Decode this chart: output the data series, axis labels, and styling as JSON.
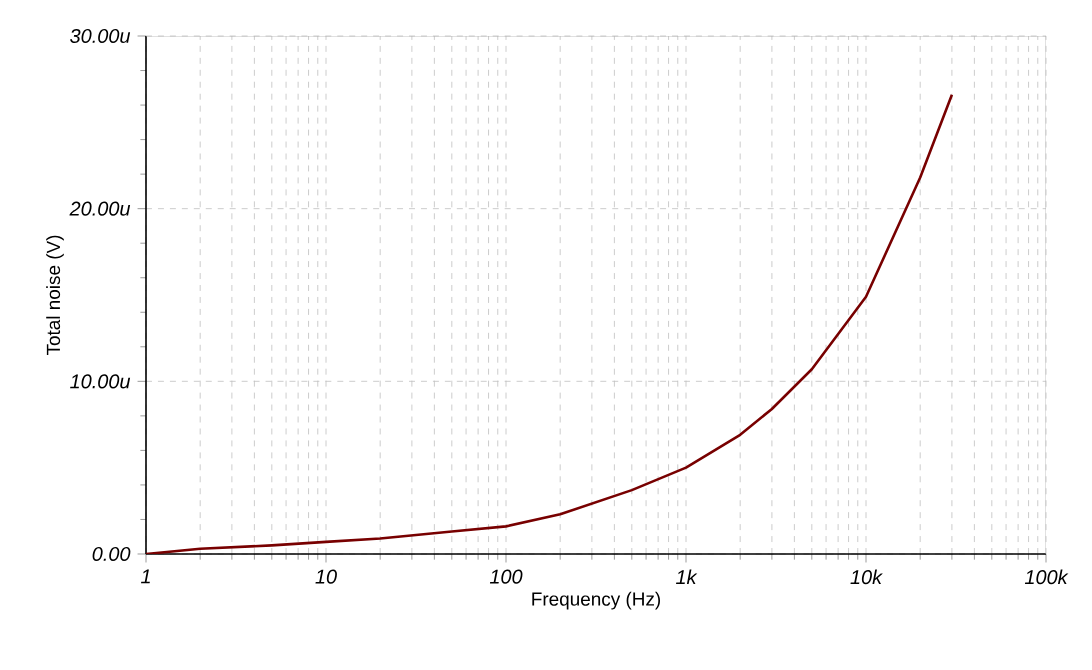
{
  "chart_data": {
    "type": "line",
    "xlabel": "Frequency (Hz)",
    "ylabel": "Total noise (V)",
    "log": "x",
    "grid": true,
    "marker": "none",
    "line_style": "solid",
    "xlim": [
      1,
      100000
    ],
    "ylim": [
      0,
      30
    ],
    "xticks": [
      1,
      10,
      100,
      {
        "value": 1000,
        "label": "1k"
      },
      {
        "value": 10000,
        "label": "10k"
      },
      {
        "value": 100000,
        "label": "100k"
      }
    ],
    "yticks": [
      {
        "value": 0,
        "label": "0.00"
      },
      {
        "value": 10,
        "label": "10.00u"
      },
      {
        "value": 20,
        "label": "20.00u"
      },
      {
        "value": 30,
        "label": "30.00u"
      }
    ],
    "series": [
      {
        "color": "#780000",
        "x": [
          1,
          2,
          5,
          10,
          20,
          50,
          100,
          200,
          500,
          1000,
          2000,
          3000,
          5000,
          10000,
          20000,
          30000
        ],
        "values": [
          0.0,
          0.3,
          0.5,
          0.7,
          0.9,
          1.3,
          1.6,
          2.3,
          3.7,
          5.0,
          6.9,
          8.4,
          10.7,
          14.9,
          21.8,
          26.6
        ]
      }
    ]
  }
}
